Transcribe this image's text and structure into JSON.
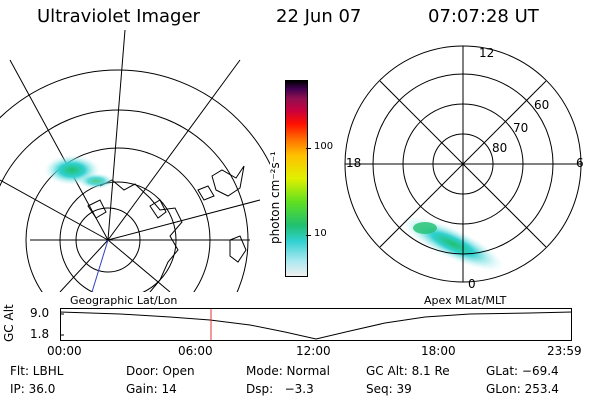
{
  "header": {
    "title": "Ultraviolet Imager",
    "date": "22 Jun 07",
    "time": "07:07:28 UT"
  },
  "colorbar": {
    "unit_label": "photon cm⁻²s⁻¹",
    "ticks": [
      "100",
      "10"
    ]
  },
  "polar": {
    "clock_labels": {
      "top": "12",
      "left": "18",
      "right": "6",
      "bottom": "0"
    },
    "lat_labels": [
      "60",
      "70",
      "80"
    ]
  },
  "panels": {
    "left_caption": "Geographic Lat/Lon",
    "right_caption": "Apex MLat/MLT"
  },
  "altitude_strip": {
    "axis_label": "GC Alt",
    "y_top": "9.0",
    "y_bottom": "1.8",
    "x_ticks": [
      "00:00",
      "06:00",
      "12:00",
      "18:00",
      "23:59"
    ],
    "marker_color": "#e53030"
  },
  "info_rows": [
    [
      "Flt: LBHL",
      "Door: Open",
      "Mode: Normal",
      "GC Alt: 8.1 Re",
      "GLat: −69.4"
    ],
    [
      "IP: 36.0",
      "Gain: 14",
      "Dsp:   −3.3",
      "Seq: 39",
      "GLon: 253.4"
    ]
  ],
  "colors": {
    "colorbar_stops": [
      "#f0f0f0",
      "#a8e8f0",
      "#30d0d0",
      "#20c070",
      "#60e020",
      "#e0f000",
      "#ffc000",
      "#ff7000",
      "#ff1000",
      "#c80040",
      "#901050",
      "#400050",
      "#000000"
    ]
  }
}
